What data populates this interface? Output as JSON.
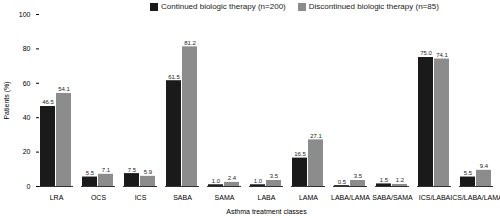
{
  "chart_data": {
    "type": "bar",
    "x_label": "Asthma treatment classes",
    "y_label": "Patients (%)",
    "categories": [
      "LRA",
      "OCS",
      "ICS",
      "SABA",
      "SAMA",
      "LABA",
      "LAMA",
      "LABA/LAMA",
      "SABA/SAMA",
      "ICS/LABA",
      "ICS/LABA/LAMA"
    ],
    "series": [
      {
        "name": "Continued biologic therapy (n=200)",
        "color": "#1a1a1a",
        "values": [
          46.5,
          5.5,
          7.5,
          61.5,
          1.0,
          1.0,
          16.5,
          0.5,
          1.5,
          75.0,
          5.5
        ],
        "value_labels": [
          "46.5",
          "5.5",
          "7.5",
          "61.5",
          "1.0",
          "1.0",
          "16.5",
          "0.5",
          "1.5",
          "75.0",
          "5.5"
        ]
      },
      {
        "name": "Discontinued biologic therapy (n=85)",
        "color": "#8c8c8c",
        "values": [
          54.1,
          7.1,
          5.9,
          81.2,
          2.4,
          3.5,
          27.1,
          3.5,
          1.2,
          74.1,
          9.4
        ],
        "value_labels": [
          "54.1",
          "7.1",
          "5.9",
          "81.2",
          "2.4",
          "3.5",
          "27.1",
          "3.5",
          "1.2",
          "74.1",
          "9.4"
        ]
      }
    ],
    "ylim": [
      0,
      100
    ],
    "yticks": [
      0,
      20,
      40,
      60,
      80,
      100
    ],
    "data_labels": true,
    "legend": "top"
  }
}
